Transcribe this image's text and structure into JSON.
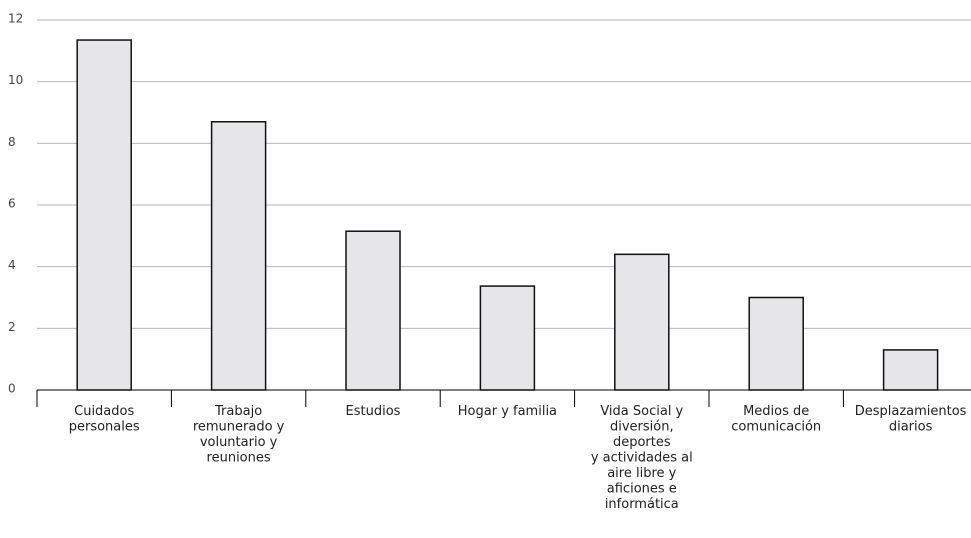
{
  "chart_data": {
    "type": "bar",
    "categories": [
      "Cuidados\npersonales",
      "Trabajo\nremunerado y\nvoluntario y\nreuniones",
      "Estudios",
      "Hogar y familia",
      "Vida Social y\ndiversión,\ndeportes\ny actividades al\naire libre y\naficiones e\ninformática",
      "Medios de\ncomunicación",
      "Desplazamientos\ndiarios"
    ],
    "values": [
      11.35,
      8.7,
      5.15,
      3.37,
      4.4,
      3.0,
      1.3
    ],
    "color": "#e6e6e8",
    "ylim": [
      0,
      12
    ],
    "yticks": [
      0,
      2,
      4,
      6,
      8,
      10,
      12
    ],
    "grid": true
  }
}
